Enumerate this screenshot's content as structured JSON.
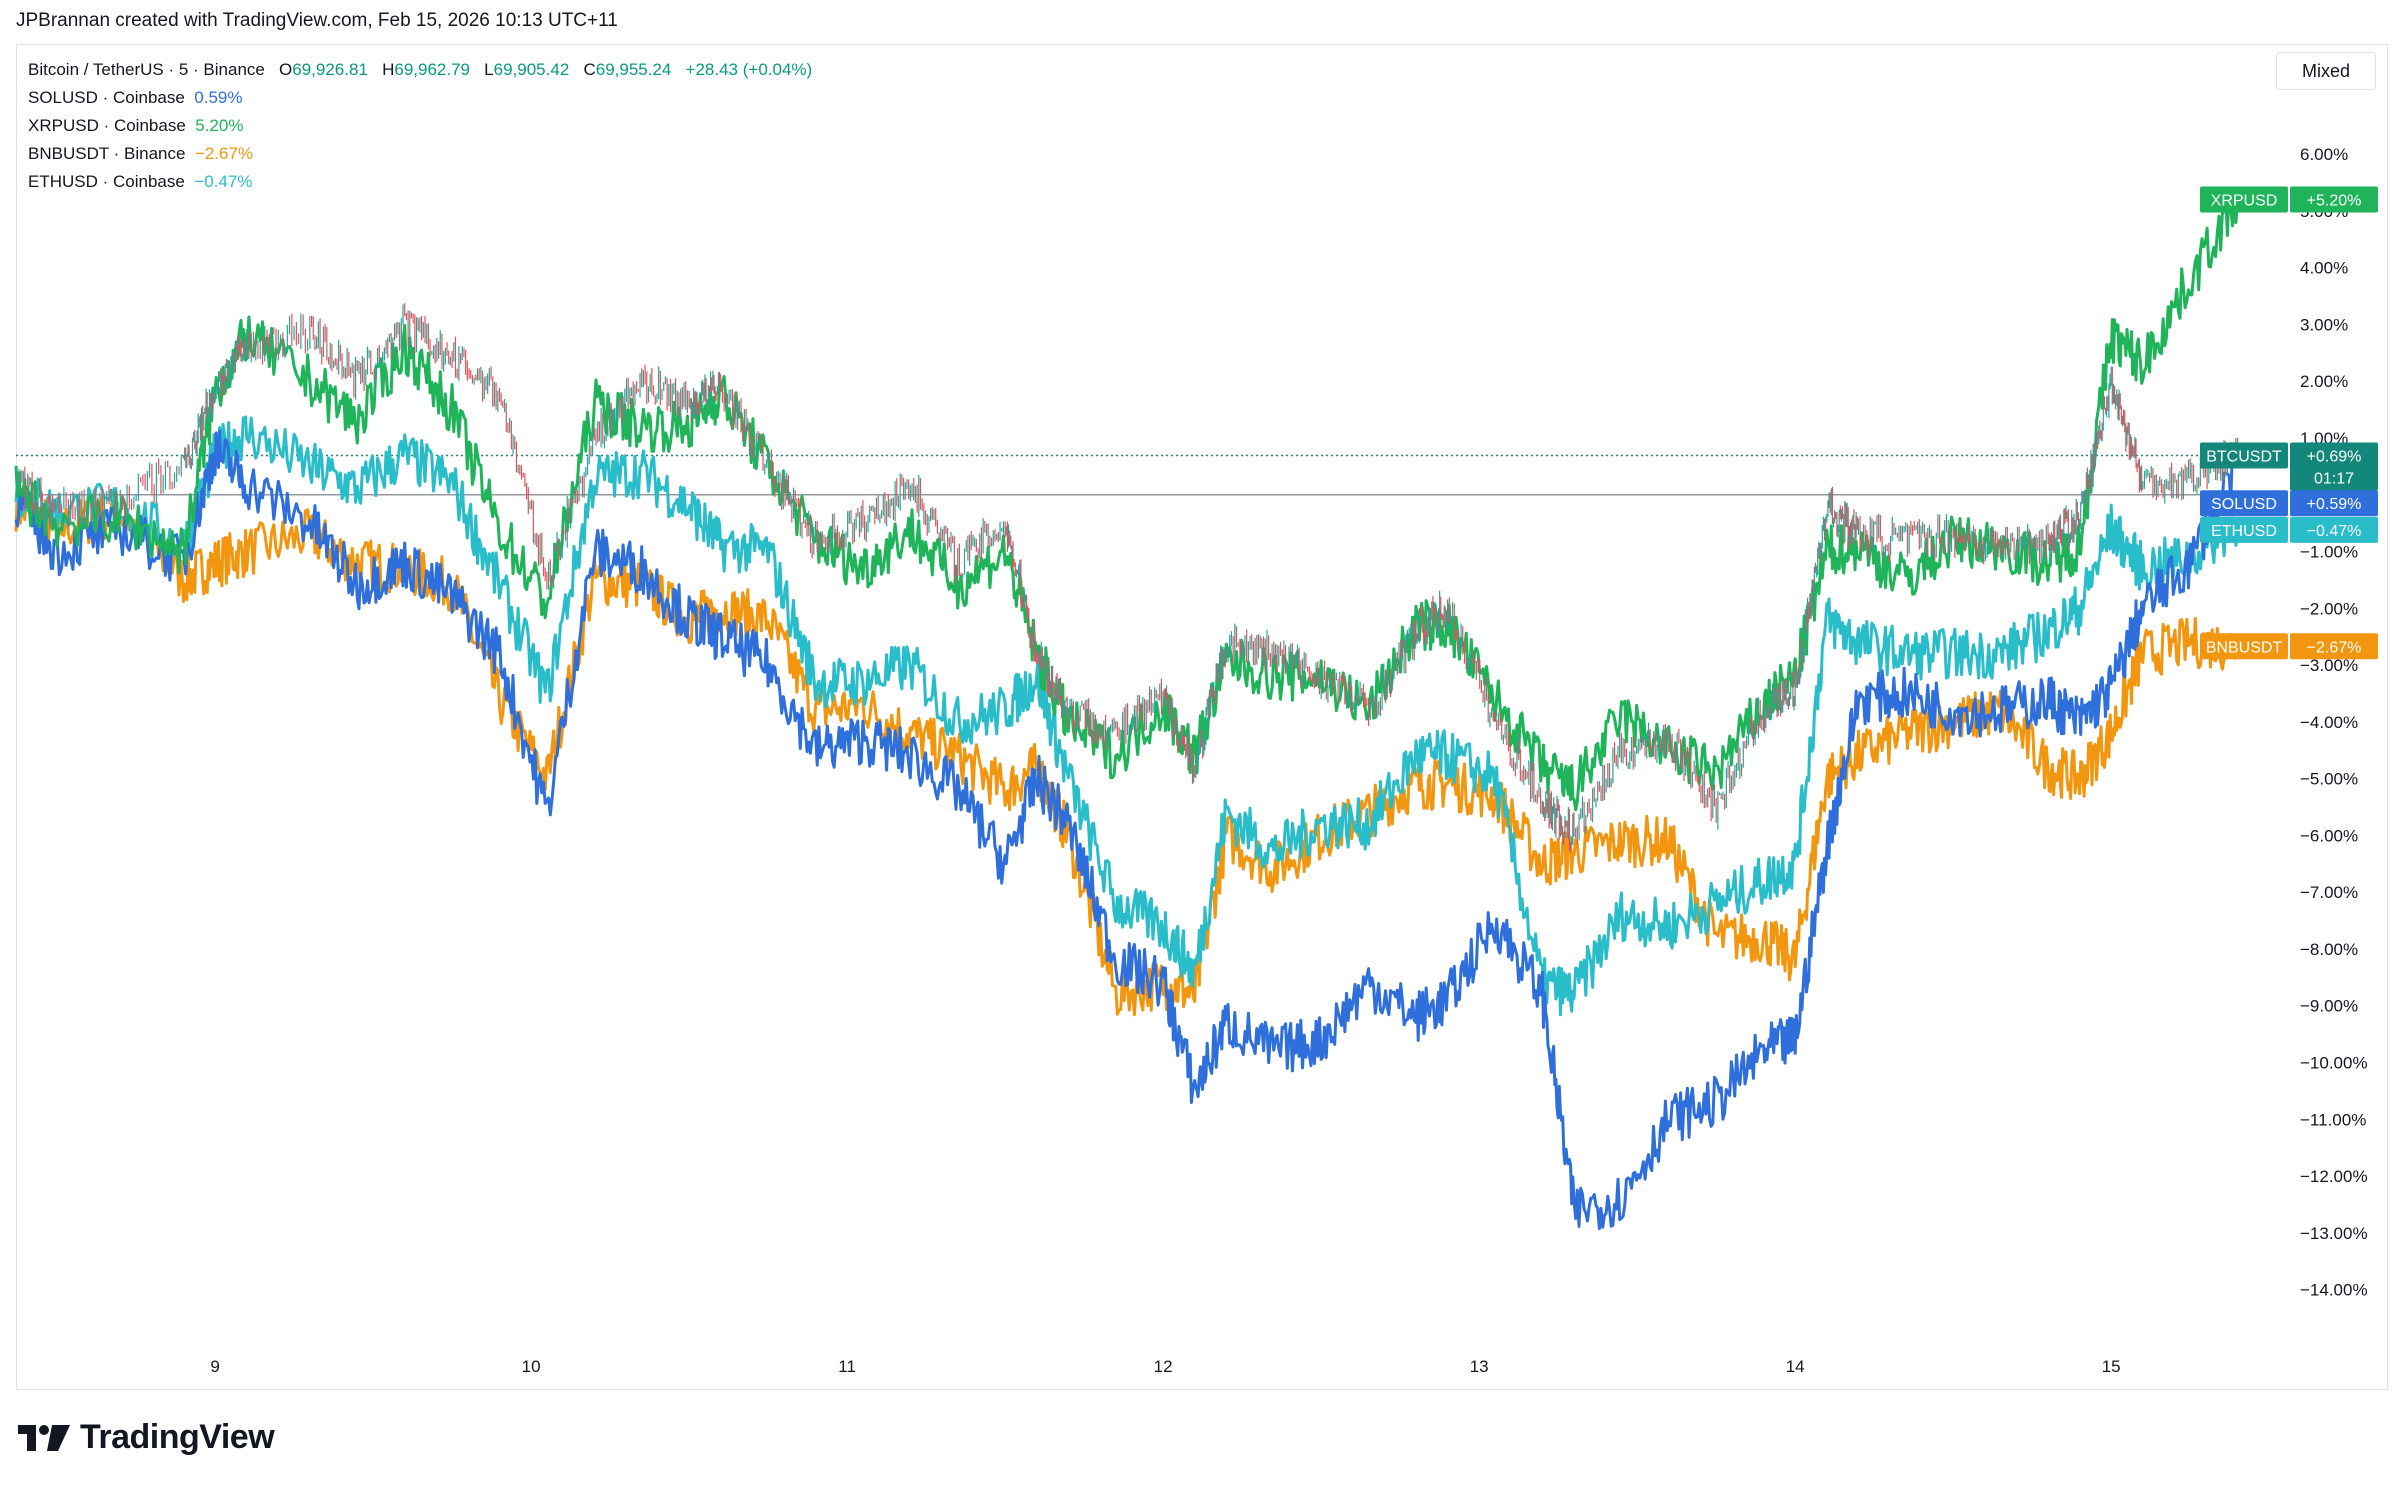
{
  "caption": "JPBrannan created with TradingView.com, Feb 15, 2026 10:13 UTC+11",
  "brand": "TradingView",
  "mode_button": "Mixed",
  "main_symbol": {
    "name": "Bitcoin / TetherUS · 5 · Binance",
    "o_label": "O",
    "o": "69,926.81",
    "h_label": "H",
    "h": "69,962.79",
    "l_label": "L",
    "l": "69,905.42",
    "c_label": "C",
    "c": "69,955.24",
    "change": "+28.43 (+0.04%)"
  },
  "legend": [
    {
      "name": "SOLUSD · Coinbase",
      "value": "0.59%",
      "color": "#2f6fdc"
    },
    {
      "name": "XRPUSD · Coinbase",
      "value": "5.20%",
      "color": "#1fb35a"
    },
    {
      "name": "BNBUSDT · Binance",
      "value": "−2.67%",
      "color": "#f2950f"
    },
    {
      "name": "ETHUSD · Coinbase",
      "value": "−0.47%",
      "color": "#29bcc9"
    }
  ],
  "chart_data": {
    "type": "line",
    "ylim": [
      -14.8,
      6.6
    ],
    "y_ticks": [
      "6.00%",
      "5.00%",
      "4.00%",
      "3.00%",
      "2.00%",
      "1.00%",
      "0.00%",
      "−1.00%",
      "−2.00%",
      "−3.00%",
      "−4.00%",
      "−5.00%",
      "−6.00%",
      "−7.00%",
      "−8.00%",
      "−9.00%",
      "−10.00%",
      "−11.00%",
      "−12.00%",
      "−13.00%",
      "−14.00%"
    ],
    "y_tick_values": [
      6,
      5,
      4,
      3,
      2,
      1,
      0,
      -1,
      -2,
      -3,
      -4,
      -5,
      -6,
      -7,
      -8,
      -9,
      -10,
      -11,
      -12,
      -13,
      -14
    ],
    "x_ticks": [
      "9",
      "10",
      "11",
      "12",
      "13",
      "14",
      "15"
    ],
    "x_tick_values": [
      9,
      10,
      11,
      12,
      13,
      14,
      15
    ],
    "xlim": [
      8.37,
      15.55
    ],
    "x": [
      8.37,
      8.5,
      8.7,
      8.9,
      9.0,
      9.1,
      9.3,
      9.45,
      9.6,
      9.75,
      9.9,
      10.05,
      10.2,
      10.35,
      10.5,
      10.6,
      10.75,
      10.9,
      11.05,
      11.2,
      11.35,
      11.5,
      11.6,
      11.7,
      11.85,
      12.0,
      12.1,
      12.2,
      12.35,
      12.5,
      12.65,
      12.8,
      12.9,
      13.05,
      13.2,
      13.3,
      13.45,
      13.6,
      13.75,
      13.9,
      14.0,
      14.1,
      14.2,
      14.35,
      14.5,
      14.65,
      14.8,
      14.9,
      15.0,
      15.1,
      15.25,
      15.4
    ],
    "series": [
      {
        "name": "BTCUSDT",
        "color": "#26a69a",
        "candles": true,
        "values": [
          0.2,
          -0.3,
          -0.1,
          0.5,
          1.9,
          2.6,
          2.9,
          2.0,
          3.0,
          2.4,
          1.8,
          -1.5,
          1.0,
          2.0,
          1.6,
          1.9,
          0.5,
          -0.8,
          -0.5,
          0.2,
          -1.2,
          -0.5,
          -2.8,
          -3.8,
          -4.2,
          -3.6,
          -4.8,
          -2.6,
          -2.8,
          -3.2,
          -3.8,
          -2.4,
          -2.0,
          -4.0,
          -5.4,
          -6.0,
          -4.5,
          -4.3,
          -5.5,
          -3.8,
          -3.4,
          -0.2,
          -0.7,
          -0.8,
          -0.7,
          -0.9,
          -0.8,
          -0.4,
          2.0,
          0.2,
          0.3,
          0.69
        ]
      },
      {
        "name": "SOLUSD",
        "color": "#2f6fdc",
        "values": [
          -0.1,
          -1.0,
          -0.6,
          -1.2,
          0.8,
          0.2,
          -0.5,
          -1.6,
          -1.2,
          -1.8,
          -2.8,
          -5.6,
          -1.0,
          -1.3,
          -2.2,
          -2.5,
          -3.0,
          -4.5,
          -4.3,
          -4.6,
          -5.2,
          -6.5,
          -5.0,
          -5.8,
          -8.2,
          -8.6,
          -10.5,
          -9.3,
          -9.8,
          -9.6,
          -8.6,
          -9.2,
          -8.9,
          -7.5,
          -8.8,
          -12.6,
          -12.4,
          -11.0,
          -10.7,
          -9.8,
          -9.6,
          -6.2,
          -3.6,
          -3.5,
          -3.8,
          -3.8,
          -3.6,
          -4.0,
          -3.4,
          -2.0,
          -1.2,
          0.59
        ]
      },
      {
        "name": "XRPUSD",
        "color": "#1fb35a",
        "values": [
          0.1,
          -0.5,
          -0.4,
          -1.0,
          1.8,
          2.8,
          2.0,
          1.3,
          2.6,
          1.5,
          -0.6,
          -1.9,
          1.6,
          1.2,
          1.2,
          1.8,
          0.5,
          -0.8,
          -1.3,
          -0.6,
          -1.6,
          -1.0,
          -2.8,
          -4.0,
          -4.6,
          -3.7,
          -4.6,
          -2.9,
          -3.2,
          -3.2,
          -3.8,
          -2.3,
          -2.3,
          -3.6,
          -4.8,
          -5.2,
          -3.9,
          -4.5,
          -4.9,
          -3.7,
          -3.2,
          -1.0,
          -0.9,
          -1.5,
          -0.8,
          -0.9,
          -1.2,
          -0.9,
          2.8,
          2.3,
          3.8,
          5.2
        ]
      },
      {
        "name": "BNBUSDT",
        "color": "#f2950f",
        "values": [
          -0.2,
          -0.6,
          -0.3,
          -1.5,
          -1.2,
          -1.0,
          -0.7,
          -1.2,
          -1.3,
          -1.6,
          -3.6,
          -5.0,
          -1.5,
          -1.6,
          -2.2,
          -2.0,
          -2.2,
          -3.8,
          -3.7,
          -4.2,
          -4.6,
          -5.2,
          -4.8,
          -6.0,
          -8.8,
          -8.6,
          -8.8,
          -6.0,
          -6.6,
          -6.0,
          -5.6,
          -5.1,
          -5.1,
          -5.3,
          -6.5,
          -6.3,
          -6.1,
          -6.1,
          -7.8,
          -7.8,
          -8.2,
          -5.0,
          -4.6,
          -4.2,
          -4.0,
          -3.8,
          -4.8,
          -5.0,
          -4.2,
          -2.8,
          -2.6,
          -2.67
        ]
      },
      {
        "name": "ETHUSD",
        "color": "#29bcc9",
        "values": [
          0.1,
          -0.3,
          -0.2,
          -0.9,
          0.7,
          1.1,
          0.5,
          0.1,
          0.7,
          0.2,
          -1.6,
          -3.5,
          0.3,
          0.4,
          -0.2,
          -0.9,
          -1.0,
          -3.3,
          -3.3,
          -3.0,
          -4.0,
          -3.8,
          -3.2,
          -5.0,
          -7.2,
          -7.6,
          -8.4,
          -5.6,
          -6.3,
          -5.8,
          -5.8,
          -4.6,
          -4.6,
          -5.0,
          -8.6,
          -8.8,
          -7.4,
          -7.6,
          -7.2,
          -6.8,
          -6.5,
          -2.2,
          -2.6,
          -2.8,
          -2.8,
          -2.8,
          -2.4,
          -2.0,
          -0.6,
          -1.3,
          -1.1,
          -0.47
        ]
      }
    ],
    "tags": [
      {
        "name": "XRPUSD",
        "value": "+5.20%",
        "color": "#1fb35a",
        "y": 5.2
      },
      {
        "name": "BTCUSDT",
        "value": "+0.69%",
        "extra": "01:17",
        "color": "#12877a",
        "y": 0.69
      },
      {
        "name": "SOLUSD",
        "value": "+0.59%",
        "color": "#2f6fdc",
        "y": -0.15
      },
      {
        "name": "ETHUSD",
        "value": "−0.47%",
        "color": "#29bcc9",
        "y": -0.62
      },
      {
        "name": "BNBUSDT",
        "value": "−2.67%",
        "color": "#f2950f",
        "y": -2.67
      }
    ],
    "grid": false
  }
}
